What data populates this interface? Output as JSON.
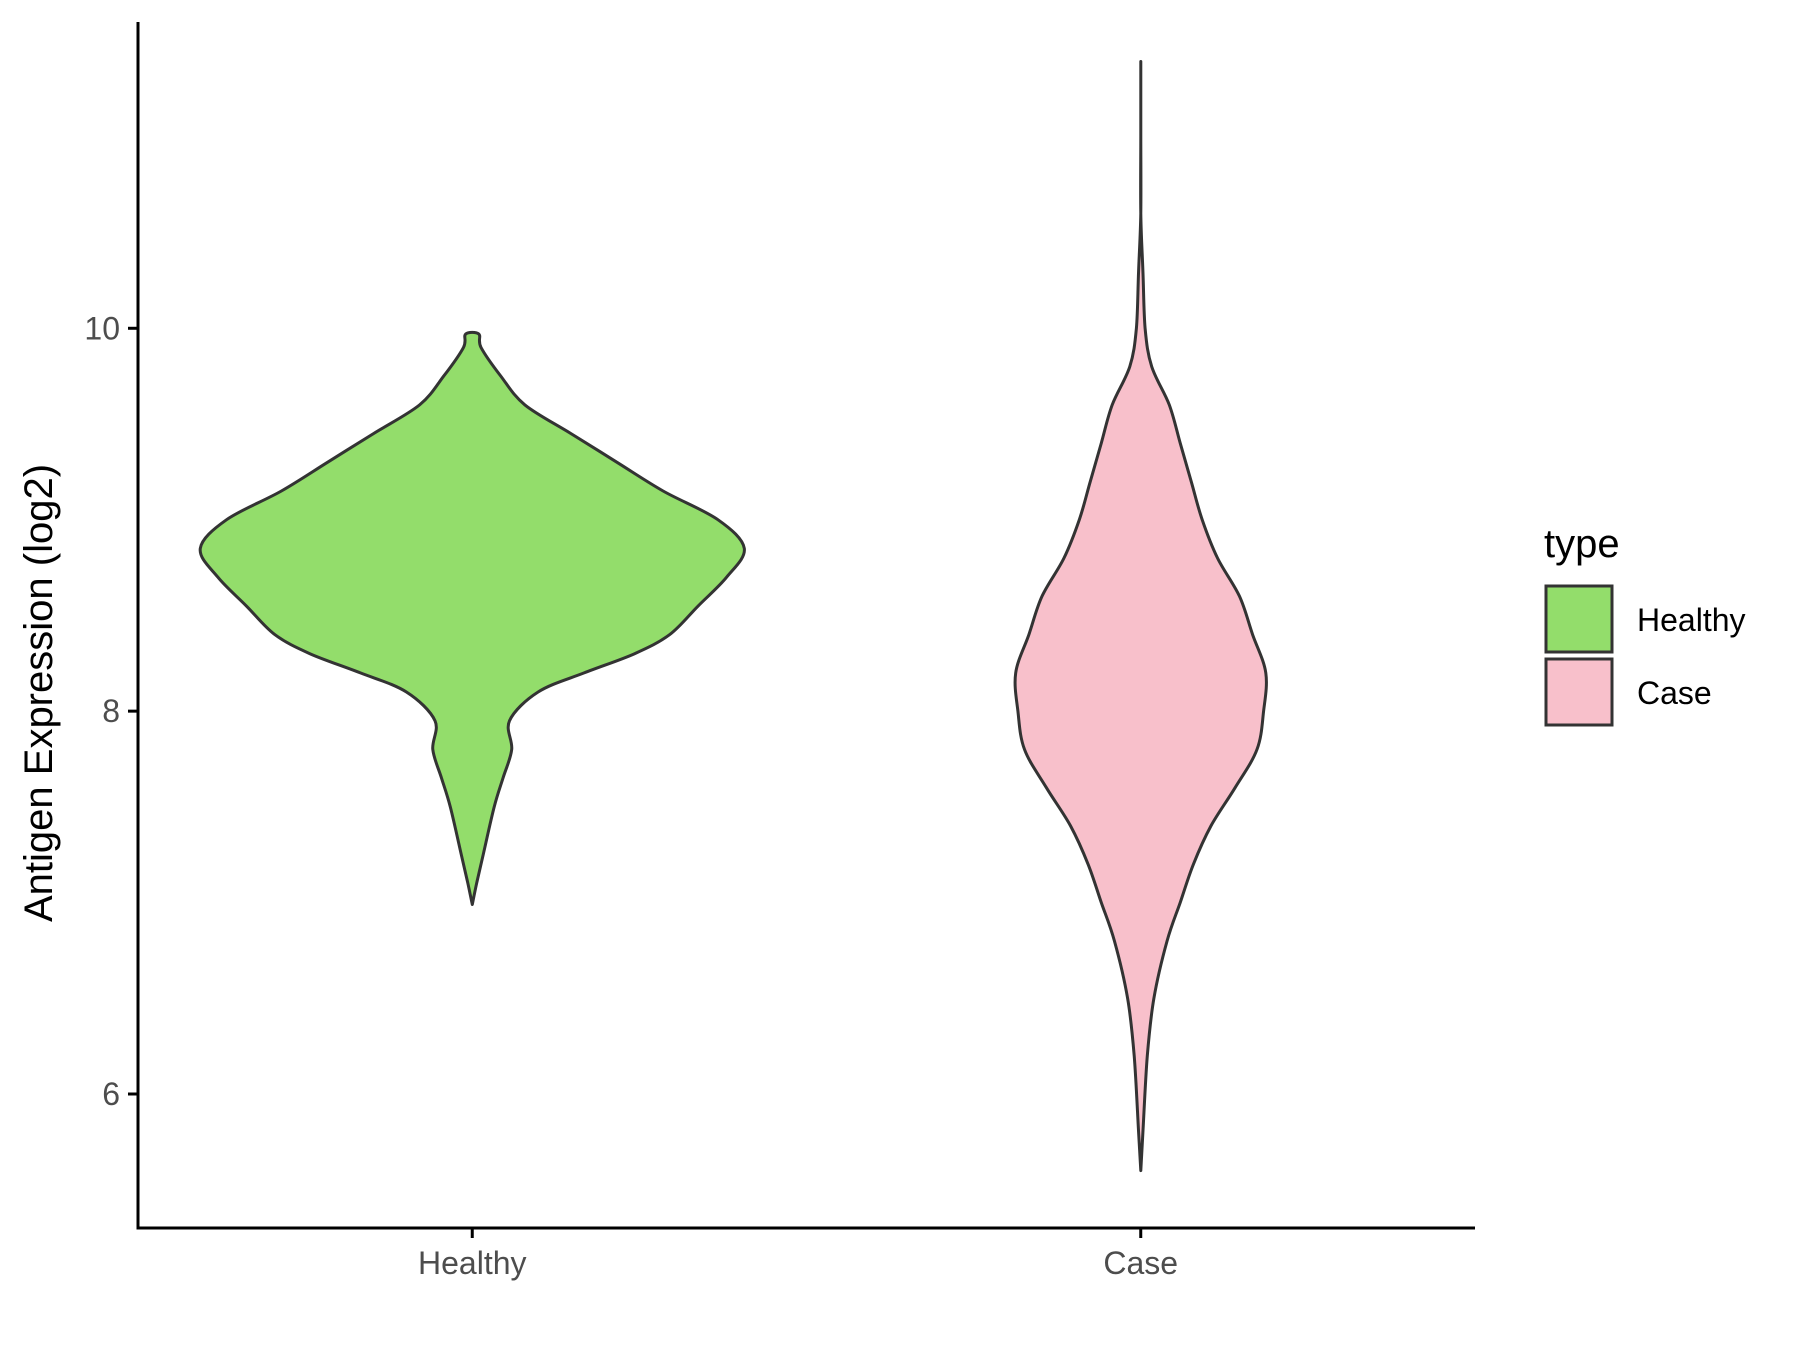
{
  "chart_data": {
    "type": "violin",
    "title": "",
    "xlabel": "",
    "ylabel": "Antigen Expression (log2)",
    "categories": [
      "Healthy",
      "Case"
    ],
    "ylim": [
      5.3,
      11.6
    ],
    "yticks": [
      6,
      8,
      10
    ],
    "grid": false,
    "legend": {
      "title": "type",
      "placement": "right",
      "entries": [
        {
          "label": "Healthy",
          "color": "#93DD6B"
        },
        {
          "label": "Case",
          "color": "#F8C0CB"
        }
      ]
    },
    "series": [
      {
        "category": "Healthy",
        "color": "#93DD6B",
        "min": 6.99,
        "max": 9.97,
        "density_profile": [
          [
            6.99,
            0.0
          ],
          [
            7.1,
            0.02
          ],
          [
            7.25,
            0.05
          ],
          [
            7.5,
            0.1
          ],
          [
            7.65,
            0.14
          ],
          [
            7.8,
            0.18
          ],
          [
            7.95,
            0.17
          ],
          [
            8.1,
            0.3
          ],
          [
            8.2,
            0.51
          ],
          [
            8.3,
            0.74
          ],
          [
            8.4,
            0.9
          ],
          [
            8.55,
            1.03
          ],
          [
            8.7,
            1.16
          ],
          [
            8.85,
            1.24
          ],
          [
            9.0,
            1.12
          ],
          [
            9.15,
            0.87
          ],
          [
            9.3,
            0.66
          ],
          [
            9.45,
            0.45
          ],
          [
            9.6,
            0.24
          ],
          [
            9.75,
            0.13
          ],
          [
            9.9,
            0.04
          ],
          [
            9.97,
            0.03
          ]
        ]
      },
      {
        "category": "Case",
        "color": "#F8C0CB",
        "min": 5.6,
        "max": 11.35,
        "density_profile": [
          [
            5.6,
            0.0
          ],
          [
            5.8,
            0.01
          ],
          [
            6.2,
            0.03
          ],
          [
            6.5,
            0.06
          ],
          [
            6.8,
            0.12
          ],
          [
            7.0,
            0.18
          ],
          [
            7.2,
            0.24
          ],
          [
            7.4,
            0.32
          ],
          [
            7.6,
            0.43
          ],
          [
            7.8,
            0.53
          ],
          [
            8.0,
            0.56
          ],
          [
            8.2,
            0.57
          ],
          [
            8.4,
            0.51
          ],
          [
            8.6,
            0.45
          ],
          [
            8.8,
            0.35
          ],
          [
            9.0,
            0.28
          ],
          [
            9.2,
            0.23
          ],
          [
            9.4,
            0.18
          ],
          [
            9.6,
            0.13
          ],
          [
            9.8,
            0.05
          ],
          [
            10.0,
            0.02
          ],
          [
            10.3,
            0.01
          ],
          [
            10.6,
            0.0
          ],
          [
            11.0,
            0.0
          ],
          [
            11.35,
            0.0
          ]
        ]
      }
    ]
  }
}
